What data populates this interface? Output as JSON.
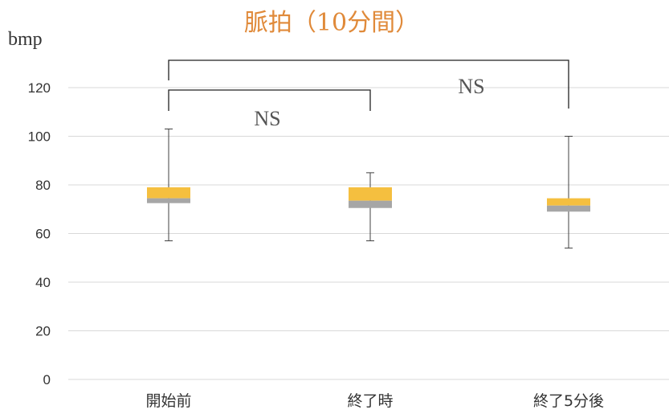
{
  "chart_data": {
    "type": "boxplot",
    "title": "脈拍（10分間）",
    "ylabel": "bmp",
    "xlabel": "",
    "ylim": [
      0,
      120
    ],
    "yticks": [
      0,
      20,
      40,
      60,
      80,
      100,
      120
    ],
    "grid": true,
    "categories": [
      "開始前",
      "終了時",
      "終了5分後"
    ],
    "boxes": [
      {
        "min": 57,
        "q1": 72.5,
        "median": 74.5,
        "q3": 79,
        "max": 103
      },
      {
        "min": 57,
        "q1": 70.5,
        "median": 73.5,
        "q3": 79,
        "max": 85
      },
      {
        "min": 54,
        "q1": 69,
        "median": 71.5,
        "q3": 74.5,
        "max": 100
      }
    ],
    "comparisons": [
      {
        "from": 0,
        "to": 1,
        "label": "NS"
      },
      {
        "from": 0,
        "to": 2,
        "label": "NS"
      }
    ],
    "colors": {
      "upper_box": "#f5bf3f",
      "lower_box": "#a6a6a6",
      "grid": "#d9d9d9",
      "title": "#e08a3a"
    }
  }
}
